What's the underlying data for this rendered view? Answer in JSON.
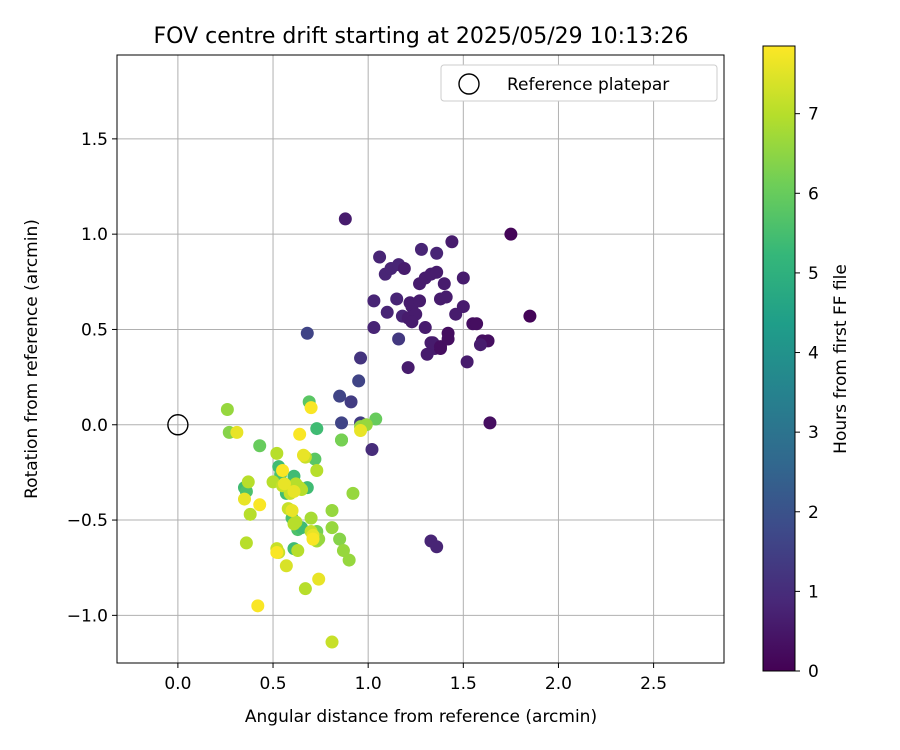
{
  "chart_data": {
    "type": "scatter",
    "title": "FOV centre drift starting at 2025/05/29 10:13:26",
    "xlabel": "Angular distance from reference (arcmin)",
    "ylabel": "Rotation from reference (arcmin)",
    "xlim": [
      -0.32,
      2.87
    ],
    "ylim": [
      -1.25,
      1.94
    ],
    "xticks": [
      0.0,
      0.5,
      1.0,
      1.5,
      2.0,
      2.5
    ],
    "yticks": [
      -1.0,
      -0.5,
      0.0,
      0.5,
      1.0,
      1.5
    ],
    "xtick_labels": [
      "0.0",
      "0.5",
      "1.0",
      "1.5",
      "2.0",
      "2.5"
    ],
    "ytick_labels": [
      "−1.0",
      "−0.5",
      "0.0",
      "0.5",
      "1.0",
      "1.5"
    ],
    "grid": true,
    "legend": {
      "position": "top-right",
      "entries": [
        "Reference platepar"
      ]
    },
    "reference_point": {
      "x": 0.0,
      "y": 0.0,
      "marker": "open-circle",
      "edge_color": "#000000"
    },
    "colorbar": {
      "label": "Hours from first FF file",
      "range": [
        0,
        7.85
      ],
      "ticks": [
        0,
        1,
        2,
        3,
        4,
        5,
        6,
        7
      ],
      "tick_labels": [
        "0",
        "1",
        "2",
        "3",
        "4",
        "5",
        "6",
        "7"
      ],
      "colormap": "viridis",
      "colormap_stops": [
        "#440154",
        "#482878",
        "#3e4989",
        "#31688e",
        "#26828e",
        "#1f9e89",
        "#35b779",
        "#6ece58",
        "#b5de2b",
        "#fde725"
      ]
    },
    "series": [
      {
        "x": [
          0.88,
          1.75,
          1.85,
          1.06,
          1.28,
          1.36,
          1.44,
          1.09,
          1.12,
          1.16,
          1.19,
          1.22,
          1.27,
          1.3,
          1.33,
          1.36,
          1.38,
          1.4,
          1.41,
          1.5,
          1.55,
          1.6,
          1.03,
          1.1,
          1.15,
          1.18,
          1.21,
          1.23,
          1.25,
          1.27,
          1.3,
          1.33,
          1.35,
          1.38,
          1.42,
          1.46,
          1.5,
          1.57,
          1.63,
          1.16,
          1.21,
          1.31,
          1.34,
          1.38,
          1.42,
          1.52,
          1.59,
          1.64,
          1.33,
          1.36,
          1.03,
          1.23
        ],
        "y": [
          1.08,
          1.0,
          0.57,
          0.88,
          0.92,
          0.9,
          0.96,
          0.79,
          0.82,
          0.84,
          0.82,
          0.64,
          0.74,
          0.77,
          0.79,
          0.8,
          0.66,
          0.74,
          0.67,
          0.77,
          0.53,
          0.44,
          0.65,
          0.59,
          0.66,
          0.57,
          0.56,
          0.62,
          0.58,
          0.65,
          0.51,
          0.43,
          0.4,
          0.4,
          0.48,
          0.58,
          0.62,
          0.53,
          0.44,
          0.45,
          0.3,
          0.37,
          0.43,
          0.41,
          0.45,
          0.33,
          0.42,
          0.01,
          -0.61,
          -0.64,
          0.51,
          0.54
        ],
        "hours": [
          0.6,
          0.1,
          0.1,
          0.8,
          0.8,
          0.8,
          0.6,
          0.8,
          0.8,
          0.8,
          0.6,
          0.6,
          0.6,
          0.6,
          0.6,
          0.6,
          0.6,
          0.6,
          0.6,
          0.6,
          0.3,
          0.3,
          0.8,
          0.8,
          0.8,
          0.8,
          0.6,
          0.6,
          0.6,
          0.6,
          0.6,
          0.6,
          0.6,
          0.3,
          0.3,
          0.6,
          0.6,
          0.3,
          0.3,
          1.3,
          0.6,
          0.6,
          0.6,
          0.3,
          0.3,
          0.6,
          0.6,
          0.3,
          0.8,
          0.8,
          0.8,
          0.6
        ]
      },
      {
        "x": [
          0.68,
          0.96,
          0.95,
          0.85,
          0.91,
          0.86,
          0.96,
          1.02
        ],
        "y": [
          0.48,
          0.35,
          0.23,
          0.15,
          0.12,
          0.01,
          0.01,
          -0.13
        ],
        "hours": [
          1.6,
          1.2,
          1.6,
          1.6,
          1.4,
          1.6,
          1.4,
          1.0
        ]
      },
      {
        "x": [
          0.35,
          0.36,
          0.53,
          0.57,
          0.61,
          0.68,
          0.69,
          0.72,
          0.73,
          0.86,
          1.04,
          0.54,
          0.63,
          0.61,
          0.65,
          0.6,
          0.73,
          0.43
        ],
        "y": [
          -0.33,
          -0.35,
          -0.22,
          -0.36,
          -0.27,
          -0.33,
          0.12,
          -0.18,
          -0.02,
          -0.08,
          0.03,
          -0.26,
          -0.55,
          -0.65,
          -0.54,
          -0.49,
          -0.56,
          -0.11
        ],
        "hours": [
          5.4,
          5.6,
          5.4,
          5.4,
          5.4,
          5.4,
          5.8,
          5.8,
          5.4,
          6.0,
          6.0,
          5.6,
          5.6,
          5.4,
          5.4,
          5.6,
          6.2,
          6.0
        ]
      },
      {
        "x": [
          0.26,
          0.27,
          0.37,
          0.36,
          0.38,
          0.52,
          0.5,
          0.55,
          0.59,
          0.62,
          0.65,
          0.67,
          0.7,
          0.73,
          0.81,
          0.85,
          0.87,
          0.9,
          0.92,
          0.96,
          0.86,
          0.52,
          0.53,
          0.57,
          0.58,
          0.62,
          0.64,
          0.67,
          0.7,
          0.73,
          0.81,
          0.61,
          0.63,
          0.99,
          0.81,
          0.74
        ],
        "y": [
          0.08,
          -0.04,
          -0.3,
          -0.62,
          -0.47,
          -0.15,
          -0.3,
          -0.32,
          -0.36,
          -0.31,
          -0.34,
          -0.86,
          -0.49,
          -0.24,
          -0.45,
          -0.6,
          -0.66,
          -0.71,
          -0.36,
          -0.01,
          -0.08,
          -0.65,
          -0.67,
          -0.74,
          -0.44,
          -0.51,
          -0.33,
          -0.17,
          -0.56,
          -0.61,
          -0.54,
          -0.52,
          -0.66,
          0.0,
          -1.14,
          -0.6
        ],
        "hours": [
          6.6,
          6.4,
          7.0,
          7.0,
          7.0,
          7.0,
          7.0,
          7.2,
          7.2,
          7.0,
          7.0,
          7.0,
          6.8,
          7.0,
          6.6,
          6.4,
          6.6,
          6.6,
          6.6,
          6.6,
          6.2,
          7.2,
          7.2,
          7.4,
          7.2,
          7.0,
          7.0,
          7.2,
          7.2,
          6.8,
          6.6,
          7.0,
          7.0,
          6.6,
          7.2,
          6.6
        ]
      },
      {
        "x": [
          0.31,
          0.35,
          0.43,
          0.42,
          0.52,
          0.55,
          0.6,
          0.64,
          0.66,
          0.7,
          0.71,
          0.74,
          0.56,
          0.96,
          0.71,
          0.61
        ],
        "y": [
          -0.04,
          -0.39,
          -0.42,
          -0.95,
          -0.67,
          -0.24,
          -0.45,
          -0.05,
          -0.16,
          0.09,
          -0.58,
          -0.81,
          -0.31,
          -0.03,
          -0.6,
          -0.35
        ],
        "hours": [
          7.6,
          7.6,
          7.8,
          7.8,
          7.8,
          7.8,
          7.6,
          7.8,
          7.6,
          7.8,
          7.6,
          7.6,
          7.6,
          7.6,
          7.8,
          7.6
        ]
      }
    ]
  }
}
